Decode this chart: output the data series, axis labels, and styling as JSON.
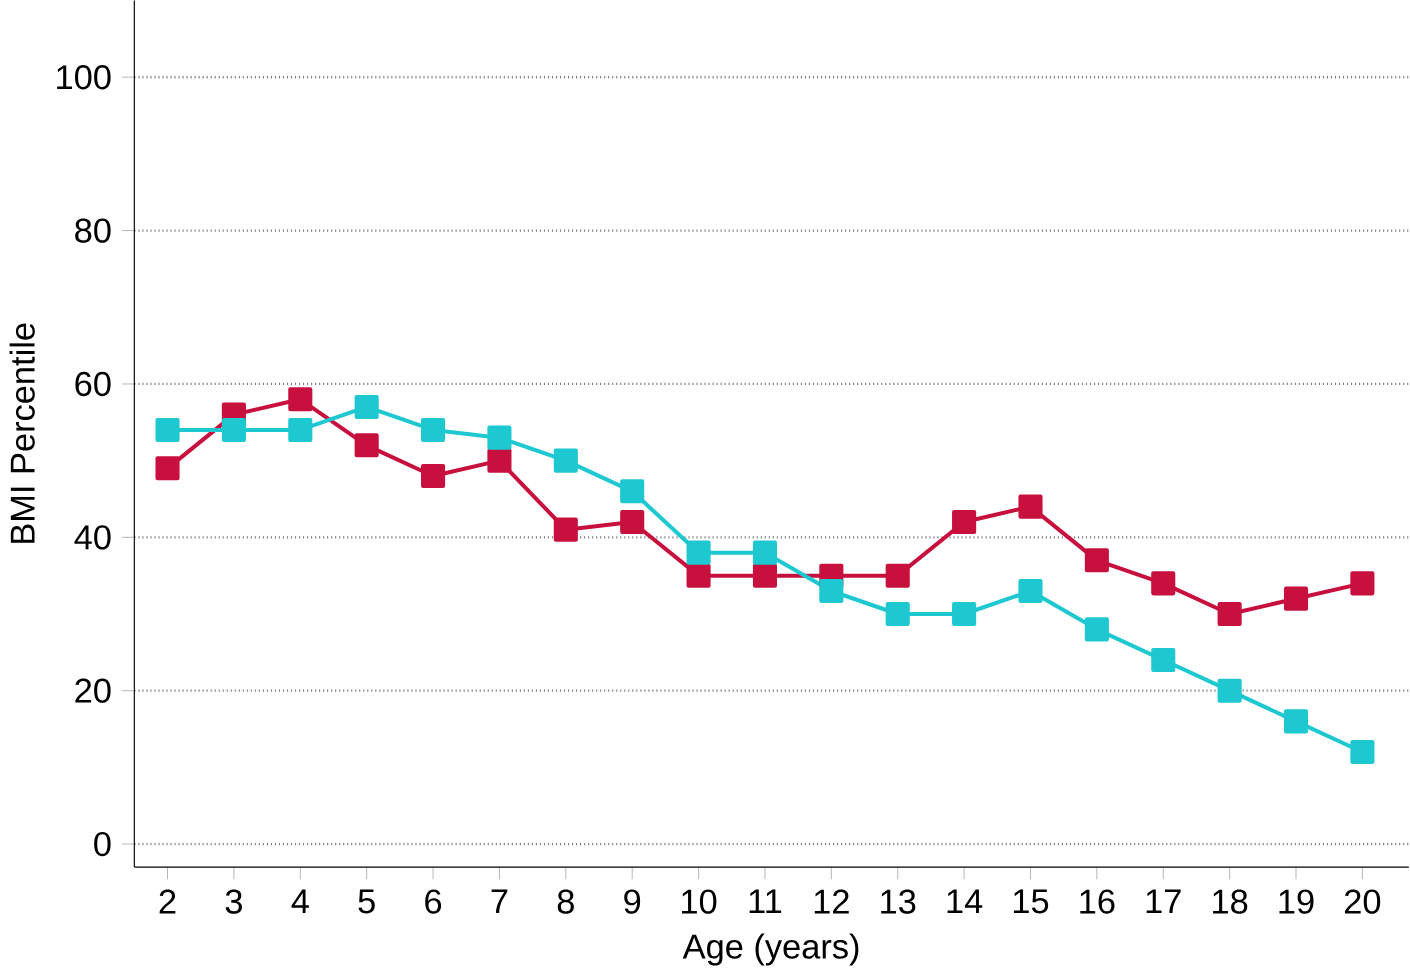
{
  "chart_data": {
    "type": "line",
    "xlabel": "Age (years)",
    "ylabel": "BMI Percentile",
    "x": [
      2,
      3,
      4,
      5,
      6,
      7,
      8,
      9,
      10,
      11,
      12,
      13,
      14,
      15,
      16,
      17,
      18,
      19,
      20
    ],
    "series": [
      {
        "color": "#c8103e",
        "values": [
          49,
          56,
          58,
          52,
          48,
          50,
          41,
          42,
          35,
          35,
          35,
          35,
          42,
          44,
          37,
          34,
          30,
          32,
          34
        ]
      },
      {
        "color": "#1ec8d0",
        "values": [
          54,
          54,
          54,
          57,
          54,
          53,
          50,
          46,
          38,
          38,
          33,
          30,
          30,
          33,
          28,
          24,
          20,
          16,
          12
        ]
      }
    ],
    "xlim": [
      1.5,
      20.7
    ],
    "ylim": [
      -3,
      110
    ],
    "xticks": [
      2,
      3,
      4,
      5,
      6,
      7,
      8,
      9,
      10,
      11,
      12,
      13,
      14,
      15,
      16,
      17,
      18,
      19,
      20
    ],
    "yticks": [
      0,
      20,
      40,
      60,
      80,
      100
    ],
    "grid": "y",
    "marker": "square",
    "line_style": "solid"
  }
}
